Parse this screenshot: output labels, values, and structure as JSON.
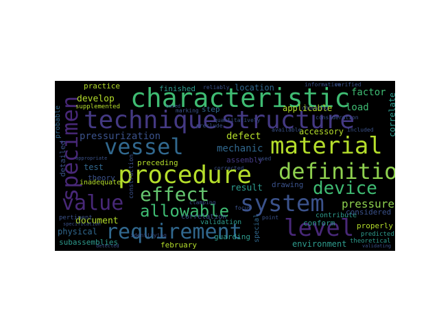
{
  "palette": {
    "c1": "#8fd14f",
    "c2": "#66c770",
    "c3": "#3fbc73",
    "c4": "#2e9c8e",
    "c5": "#31688e",
    "c6": "#3b528b",
    "c7": "#443983",
    "c8": "#482878",
    "c9": "#b5de2b",
    "bg": "#000000"
  },
  "words": {
    "characteristic": "characteristic",
    "technique": "technique",
    "structure": "structure",
    "vessel": "vessel",
    "material": "material",
    "specimen": "specimen",
    "procedure": "procedure",
    "definition": "definition",
    "effect": "effect",
    "device": "device",
    "value": "value",
    "allowable": "allowable",
    "system": "system",
    "requirement": "requirement",
    "level": "level",
    "pressure": "pressure",
    "pressurization": "pressurization",
    "mechanic": "mechanic",
    "defect": "defect",
    "accessory": "accessory",
    "factor": "factor",
    "load": "load",
    "applicable": "applicable",
    "location": "location",
    "develop": "develop",
    "practice": "practice",
    "supplemented": "supplemented",
    "finished": "finished",
    "step": "step",
    "test": "test",
    "theory": "theory",
    "preceding": "preceding",
    "assembly": "assembly",
    "result": "result",
    "drawing": "drawing",
    "document": "document",
    "inadequate": "inadequate",
    "physical": "physical",
    "subassemblies": "subassemblies",
    "february": "february",
    "guarding": "guarding",
    "validation": "validation",
    "correlation": "correlation",
    "environment": "environment",
    "conform": "conform",
    "contribute": "contribute",
    "properly": "properly",
    "predicted": "predicted",
    "theoretical": "theoretical",
    "correlate": "correlate",
    "detailed": "detailed",
    "probable": "probable",
    "special": "special",
    "considered": "considered",
    "identifying": "identifying",
    "information": "information",
    "verified": "verified",
    "choosing": "choosing",
    "consideration": "consideration",
    "available": "available",
    "reliably": "reliably",
    "marking": "marking",
    "quantitatively": "quantitatively",
    "corrected": "corrected",
    "preclude": "preclude",
    "clamping": "clamping",
    "focus": "focus",
    "point": "point",
    "validating": "validating",
    "specification": "specification",
    "detected": "detected",
    "appropriate": "appropriate",
    "pertinent": "pertinent",
    "construction": "construction",
    "used": "used",
    "included": "included",
    "based": "based"
  }
}
